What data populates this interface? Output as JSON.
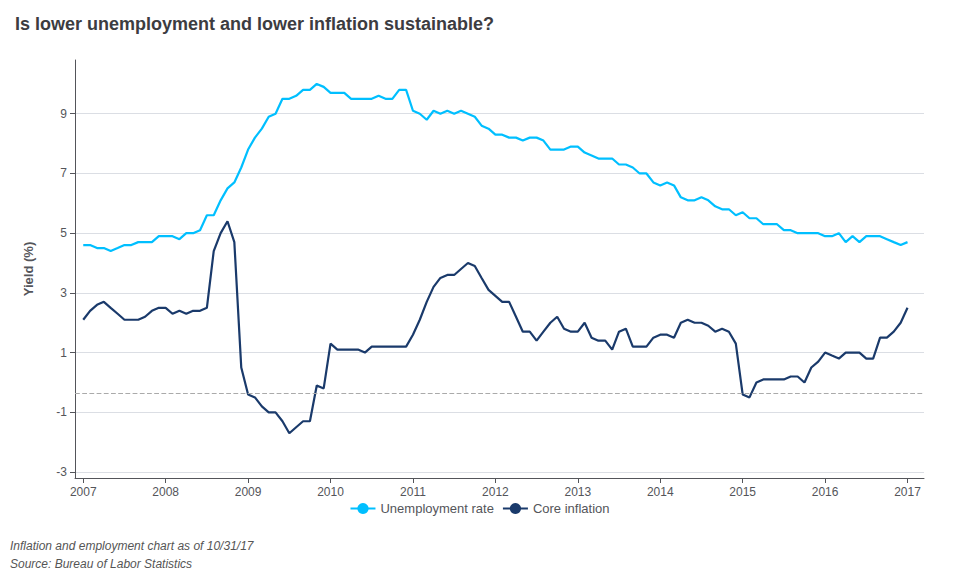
{
  "chart_data": {
    "type": "line",
    "title": "Is lower unemployment and lower inflation sustainable?",
    "ylabel": "Yield (%)",
    "annotations": [
      "Inflation and employment chart as of 10/31/17",
      "Source: Bureau of Labor Statistics"
    ],
    "x": [
      2007.0,
      2007.083,
      2007.167,
      2007.25,
      2007.333,
      2007.417,
      2007.5,
      2007.583,
      2007.667,
      2007.75,
      2007.833,
      2007.917,
      2008.0,
      2008.083,
      2008.167,
      2008.25,
      2008.333,
      2008.417,
      2008.5,
      2008.583,
      2008.667,
      2008.75,
      2008.833,
      2008.917,
      2009.0,
      2009.083,
      2009.167,
      2009.25,
      2009.333,
      2009.417,
      2009.5,
      2009.583,
      2009.667,
      2009.75,
      2009.833,
      2009.917,
      2010.0,
      2010.083,
      2010.167,
      2010.25,
      2010.333,
      2010.417,
      2010.5,
      2010.583,
      2010.667,
      2010.75,
      2010.833,
      2010.917,
      2011.0,
      2011.083,
      2011.167,
      2011.25,
      2011.333,
      2011.417,
      2011.5,
      2011.583,
      2011.667,
      2011.75,
      2011.833,
      2011.917,
      2012.0,
      2012.083,
      2012.167,
      2012.25,
      2012.333,
      2012.417,
      2012.5,
      2012.583,
      2012.667,
      2012.75,
      2012.833,
      2012.917,
      2013.0,
      2013.083,
      2013.167,
      2013.25,
      2013.333,
      2013.417,
      2013.5,
      2013.583,
      2013.667,
      2013.75,
      2013.833,
      2013.917,
      2014.0,
      2014.083,
      2014.167,
      2014.25,
      2014.333,
      2014.417,
      2014.5,
      2014.583,
      2014.667,
      2014.75,
      2014.833,
      2014.917,
      2015.0,
      2015.083,
      2015.167,
      2015.25,
      2015.333,
      2015.417,
      2015.5,
      2015.583,
      2015.667,
      2015.75,
      2015.833,
      2015.917,
      2016.0,
      2016.083,
      2016.167,
      2016.25,
      2016.333,
      2016.417,
      2016.5,
      2016.583,
      2016.667,
      2016.75,
      2016.833,
      2016.917,
      2017.0
    ],
    "series": [
      {
        "name": "Unemployment rate",
        "color": "#00BFFF",
        "values": [
          4.6,
          4.6,
          4.5,
          4.5,
          4.4,
          4.5,
          4.6,
          4.6,
          4.7,
          4.7,
          4.7,
          4.9,
          4.9,
          4.9,
          4.8,
          5.0,
          5.0,
          5.1,
          5.6,
          5.6,
          6.1,
          6.5,
          6.7,
          7.2,
          7.8,
          8.2,
          8.5,
          8.9,
          9.0,
          9.5,
          9.5,
          9.6,
          9.8,
          9.8,
          10.0,
          9.9,
          9.7,
          9.7,
          9.7,
          9.5,
          9.5,
          9.5,
          9.5,
          9.6,
          9.5,
          9.5,
          9.8,
          9.8,
          9.1,
          9.0,
          8.8,
          9.1,
          9.0,
          9.1,
          9.0,
          9.1,
          9.0,
          8.9,
          8.6,
          8.5,
          8.3,
          8.3,
          8.2,
          8.2,
          8.1,
          8.2,
          8.2,
          8.1,
          7.8,
          7.8,
          7.8,
          7.9,
          7.9,
          7.7,
          7.6,
          7.5,
          7.5,
          7.5,
          7.3,
          7.3,
          7.2,
          7.0,
          7.0,
          6.7,
          6.6,
          6.7,
          6.6,
          6.2,
          6.1,
          6.1,
          6.2,
          6.1,
          5.9,
          5.8,
          5.8,
          5.6,
          5.7,
          5.5,
          5.5,
          5.3,
          5.3,
          5.3,
          5.1,
          5.1,
          5.0,
          5.0,
          5.0,
          5.0,
          4.9,
          4.9,
          5.0,
          4.7,
          4.9,
          4.7,
          4.9,
          4.9,
          4.9,
          4.8,
          4.7,
          4.6,
          4.7
        ]
      },
      {
        "name": "Core inflation",
        "color": "#1A3A6B",
        "values": [
          2.1,
          2.4,
          2.6,
          2.7,
          2.5,
          2.3,
          2.1,
          2.1,
          2.1,
          2.2,
          2.4,
          2.5,
          2.5,
          2.3,
          2.4,
          2.3,
          2.4,
          2.4,
          2.5,
          4.4,
          5.0,
          5.4,
          4.7,
          0.5,
          -0.4,
          -0.5,
          -0.8,
          -1.0,
          -1.0,
          -1.3,
          -1.7,
          -1.5,
          -1.3,
          -1.3,
          -0.1,
          -0.2,
          1.3,
          1.1,
          1.1,
          1.1,
          1.1,
          1.0,
          1.2,
          1.2,
          1.2,
          1.2,
          1.2,
          1.2,
          1.6,
          2.1,
          2.7,
          3.2,
          3.5,
          3.6,
          3.6,
          3.8,
          4.0,
          3.9,
          3.5,
          3.1,
          2.9,
          2.7,
          2.7,
          2.2,
          1.7,
          1.7,
          1.4,
          1.7,
          2.0,
          2.2,
          1.8,
          1.7,
          1.7,
          2.0,
          1.5,
          1.4,
          1.4,
          1.1,
          1.7,
          1.8,
          1.2,
          1.2,
          1.2,
          1.5,
          1.6,
          1.6,
          1.5,
          2.0,
          2.1,
          2.0,
          2.0,
          1.9,
          1.7,
          1.8,
          1.7,
          1.3,
          -0.4,
          -0.5,
          0.0,
          0.1,
          0.1,
          0.1,
          0.1,
          0.2,
          0.2,
          0.0,
          0.5,
          0.7,
          1.0,
          0.9,
          0.8,
          1.0,
          1.0,
          1.0,
          0.8,
          0.8,
          1.5,
          1.5,
          1.7,
          2.0,
          2.5
        ]
      }
    ],
    "hlines": [
      {
        "y": -0.35,
        "color": "#aaaaaa",
        "line_style": "dashed"
      }
    ],
    "xlim": [
      2006.9,
      2017.2
    ],
    "xticks": [
      2007,
      2008,
      2009,
      2010,
      2011,
      2012,
      2013,
      2014,
      2015,
      2016,
      2017
    ],
    "ylim": [
      -3.2,
      10.8
    ],
    "yticks": [
      -3,
      -1,
      1,
      3,
      5,
      7,
      9
    ],
    "grid": "y",
    "legend": "bottom"
  }
}
